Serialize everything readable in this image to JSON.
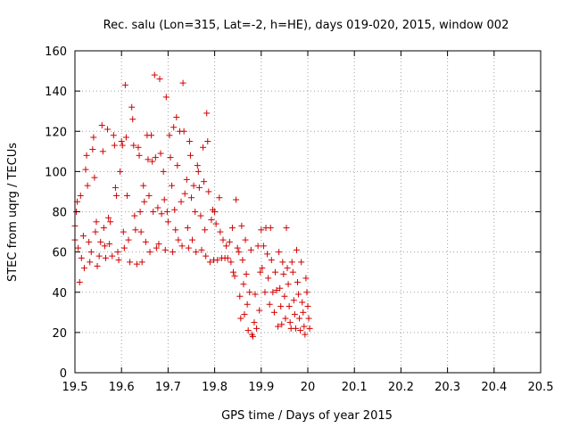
{
  "chart_data": {
    "type": "scatter",
    "title": "Rec. salu (Lon=315, Lat=-2, h=HE), days 019-020, 2015, window 002",
    "xlabel": "GPS time / Days of year 2015",
    "ylabel": "STEC from uqrg / TECUs",
    "xlim": [
      19.5,
      20.5
    ],
    "ylim": [
      0,
      160
    ],
    "x_ticks": [
      "19.5",
      "19.6",
      "19.7",
      "19.8",
      "19.9",
      "20",
      "20.1",
      "20.2",
      "20.3",
      "20.4",
      "20.5"
    ],
    "y_ticks": [
      "0",
      "20",
      "40",
      "60",
      "80",
      "100",
      "120",
      "140",
      "160"
    ],
    "grid": true,
    "marker": "plus",
    "series": [
      {
        "color": "#d00000",
        "points": [
          [
            19.5,
            73
          ],
          [
            19.5,
            66
          ],
          [
            19.503,
            80
          ],
          [
            19.505,
            85
          ],
          [
            19.507,
            62
          ],
          [
            19.51,
            45
          ],
          [
            19.512,
            88
          ],
          [
            19.514,
            57
          ],
          [
            19.518,
            68
          ],
          [
            19.52,
            52
          ],
          [
            19.523,
            101
          ],
          [
            19.525,
            108
          ],
          [
            19.527,
            93
          ],
          [
            19.53,
            65
          ],
          [
            19.532,
            55
          ],
          [
            19.535,
            60
          ],
          [
            19.538,
            111
          ],
          [
            19.54,
            117
          ],
          [
            19.542,
            97
          ],
          [
            19.544,
            70
          ],
          [
            19.546,
            75
          ],
          [
            19.548,
            53
          ],
          [
            19.552,
            58
          ],
          [
            19.555,
            65
          ],
          [
            19.558,
            123
          ],
          [
            19.56,
            110
          ],
          [
            19.562,
            72
          ],
          [
            19.564,
            63
          ],
          [
            19.566,
            57
          ],
          [
            19.57,
            121
          ],
          [
            19.572,
            77
          ],
          [
            19.574,
            64
          ],
          [
            19.576,
            75
          ],
          [
            19.58,
            58
          ],
          [
            19.583,
            118
          ],
          [
            19.585,
            113
          ],
          [
            19.587,
            92
          ],
          [
            19.589,
            88
          ],
          [
            19.592,
            60
          ],
          [
            19.594,
            56
          ],
          [
            19.597,
            100
          ],
          [
            19.6,
            115
          ],
          [
            19.602,
            113
          ],
          [
            19.604,
            70
          ],
          [
            19.606,
            62
          ],
          [
            19.608,
            143
          ],
          [
            19.61,
            117
          ],
          [
            19.612,
            88
          ],
          [
            19.615,
            66
          ],
          [
            19.618,
            55
          ],
          [
            19.622,
            132
          ],
          [
            19.624,
            126
          ],
          [
            19.626,
            113
          ],
          [
            19.628,
            78
          ],
          [
            19.63,
            71
          ],
          [
            19.633,
            54
          ],
          [
            19.636,
            112
          ],
          [
            19.638,
            108
          ],
          [
            19.64,
            80
          ],
          [
            19.642,
            70
          ],
          [
            19.644,
            55
          ],
          [
            19.647,
            93
          ],
          [
            19.649,
            85
          ],
          [
            19.652,
            65
          ],
          [
            19.655,
            118
          ],
          [
            19.657,
            106
          ],
          [
            19.659,
            88
          ],
          [
            19.661,
            60
          ],
          [
            19.664,
            118
          ],
          [
            19.666,
            105
          ],
          [
            19.668,
            80
          ],
          [
            19.671,
            148
          ],
          [
            19.673,
            107
          ],
          [
            19.675,
            62
          ],
          [
            19.678,
            82
          ],
          [
            19.68,
            64
          ],
          [
            19.682,
            146
          ],
          [
            19.684,
            109
          ],
          [
            19.686,
            79
          ],
          [
            19.69,
            100
          ],
          [
            19.692,
            86
          ],
          [
            19.694,
            61
          ],
          [
            19.696,
            137
          ],
          [
            19.698,
            80
          ],
          [
            19.7,
            75
          ],
          [
            19.703,
            118
          ],
          [
            19.705,
            107
          ],
          [
            19.708,
            93
          ],
          [
            19.71,
            60
          ],
          [
            19.712,
            122
          ],
          [
            19.714,
            81
          ],
          [
            19.716,
            71
          ],
          [
            19.718,
            127
          ],
          [
            19.72,
            103
          ],
          [
            19.722,
            66
          ],
          [
            19.725,
            120
          ],
          [
            19.728,
            85
          ],
          [
            19.73,
            63
          ],
          [
            19.732,
            144
          ],
          [
            19.734,
            120
          ],
          [
            19.736,
            89
          ],
          [
            19.74,
            96
          ],
          [
            19.742,
            72
          ],
          [
            19.744,
            62
          ],
          [
            19.746,
            115
          ],
          [
            19.748,
            108
          ],
          [
            19.75,
            87
          ],
          [
            19.752,
            66
          ],
          [
            19.755,
            93
          ],
          [
            19.758,
            80
          ],
          [
            19.76,
            60
          ],
          [
            19.763,
            103
          ],
          [
            19.765,
            100
          ],
          [
            19.767,
            92
          ],
          [
            19.77,
            78
          ],
          [
            19.772,
            61
          ],
          [
            19.775,
            112
          ],
          [
            19.777,
            95
          ],
          [
            19.779,
            71
          ],
          [
            19.781,
            58
          ],
          [
            19.783,
            129
          ],
          [
            19.785,
            115
          ],
          [
            19.787,
            90
          ],
          [
            19.79,
            55
          ],
          [
            19.793,
            76
          ],
          [
            19.796,
            81
          ],
          [
            19.798,
            56
          ],
          [
            19.8,
            80
          ],
          [
            19.803,
            74
          ],
          [
            19.806,
            56
          ],
          [
            19.81,
            87
          ],
          [
            19.812,
            70
          ],
          [
            19.815,
            57
          ],
          [
            19.818,
            66
          ],
          [
            19.822,
            57
          ],
          [
            19.825,
            63
          ],
          [
            19.828,
            57
          ],
          [
            19.832,
            65
          ],
          [
            19.835,
            55
          ],
          [
            19.838,
            72
          ],
          [
            19.84,
            50
          ],
          [
            19.843,
            48
          ],
          [
            19.846,
            86
          ],
          [
            19.849,
            62
          ],
          [
            19.852,
            60
          ],
          [
            19.854,
            38
          ],
          [
            19.856,
            27
          ],
          [
            19.858,
            73
          ],
          [
            19.86,
            56
          ],
          [
            19.862,
            44
          ],
          [
            19.864,
            29
          ],
          [
            19.866,
            66
          ],
          [
            19.868,
            49
          ],
          [
            19.87,
            34
          ],
          [
            19.872,
            21
          ],
          [
            19.875,
            40
          ],
          [
            19.878,
            61
          ],
          [
            19.88,
            19
          ],
          [
            19.882,
            18
          ],
          [
            19.885,
            25
          ],
          [
            19.887,
            39
          ],
          [
            19.89,
            22
          ],
          [
            19.893,
            63
          ],
          [
            19.896,
            31
          ],
          [
            19.898,
            50
          ],
          [
            19.9,
            71
          ],
          [
            19.902,
            52
          ],
          [
            19.905,
            63
          ],
          [
            19.908,
            40
          ],
          [
            19.91,
            72
          ],
          [
            19.913,
            59
          ],
          [
            19.915,
            47
          ],
          [
            19.918,
            34
          ],
          [
            19.92,
            72
          ],
          [
            19.922,
            56
          ],
          [
            19.925,
            40
          ],
          [
            19.928,
            30
          ],
          [
            19.93,
            50
          ],
          [
            19.933,
            41
          ],
          [
            19.936,
            23
          ],
          [
            19.938,
            60
          ],
          [
            19.94,
            42
          ],
          [
            19.942,
            33
          ],
          [
            19.944,
            24
          ],
          [
            19.946,
            55
          ],
          [
            19.948,
            49
          ],
          [
            19.95,
            38
          ],
          [
            19.952,
            27
          ],
          [
            19.954,
            72
          ],
          [
            19.956,
            52
          ],
          [
            19.958,
            44
          ],
          [
            19.96,
            33
          ],
          [
            19.962,
            25
          ],
          [
            19.964,
            22
          ],
          [
            19.966,
            55
          ],
          [
            19.968,
            50
          ],
          [
            19.97,
            36
          ],
          [
            19.972,
            29
          ],
          [
            19.974,
            22
          ],
          [
            19.976,
            61
          ],
          [
            19.978,
            45
          ],
          [
            19.98,
            39
          ],
          [
            19.982,
            27
          ],
          [
            19.984,
            21
          ],
          [
            19.986,
            55
          ],
          [
            19.988,
            35
          ],
          [
            19.99,
            30
          ],
          [
            19.992,
            23
          ],
          [
            19.994,
            19
          ],
          [
            19.996,
            47
          ],
          [
            19.998,
            40
          ],
          [
            20.0,
            33
          ],
          [
            20.002,
            27
          ],
          [
            20.004,
            22
          ]
        ]
      }
    ]
  }
}
